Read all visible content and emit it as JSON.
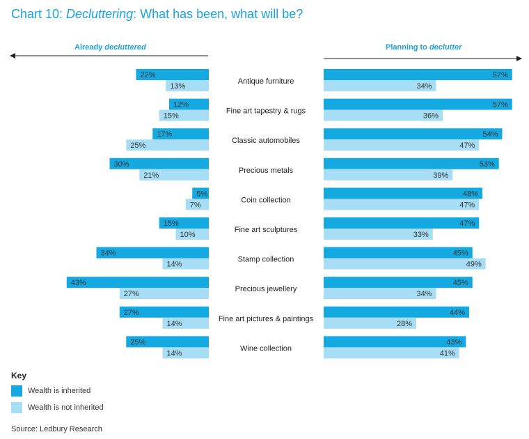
{
  "title": {
    "prefix": "Chart 10: ",
    "italic": "Decluttering",
    "suffix": ": What has been, what will be?"
  },
  "headers": {
    "left_prefix": "Already ",
    "left_italic": "decluttered",
    "right_prefix": "Planning to ",
    "right_italic": "declutter"
  },
  "key": {
    "title": "Key",
    "inherited": "Wealth is inherited",
    "not_inherited": "Wealth is not inherited"
  },
  "source": "Source: Ledbury Research",
  "colors": {
    "inherited": "#14a9e1",
    "not_inherited": "#a8def5",
    "accent": "#1aa3e0"
  },
  "chart_data": {
    "type": "bar",
    "categories": [
      "Antique furniture",
      "Fine art tapestry & rugs",
      "Classic automobiles",
      "Precious metals",
      "Coin collection",
      "Fine art sculptures",
      "Stamp collection",
      "Precious jewellery",
      "Fine art pictures & paintings",
      "Wine collection"
    ],
    "panels": [
      {
        "name": "Already decluttered",
        "series": [
          {
            "name": "Wealth is inherited",
            "values": [
              22,
              12,
              17,
              30,
              5,
              15,
              34,
              43,
              27,
              25
            ]
          },
          {
            "name": "Wealth is not inherited",
            "values": [
              13,
              15,
              25,
              21,
              7,
              10,
              14,
              27,
              14,
              14
            ]
          }
        ]
      },
      {
        "name": "Planning to declutter",
        "series": [
          {
            "name": "Wealth is inherited",
            "values": [
              57,
              57,
              54,
              53,
              48,
              47,
              45,
              45,
              44,
              43
            ]
          },
          {
            "name": "Wealth is not inherited",
            "values": [
              34,
              36,
              47,
              39,
              47,
              33,
              49,
              34,
              28,
              41
            ]
          }
        ]
      }
    ],
    "value_suffix": "%"
  }
}
